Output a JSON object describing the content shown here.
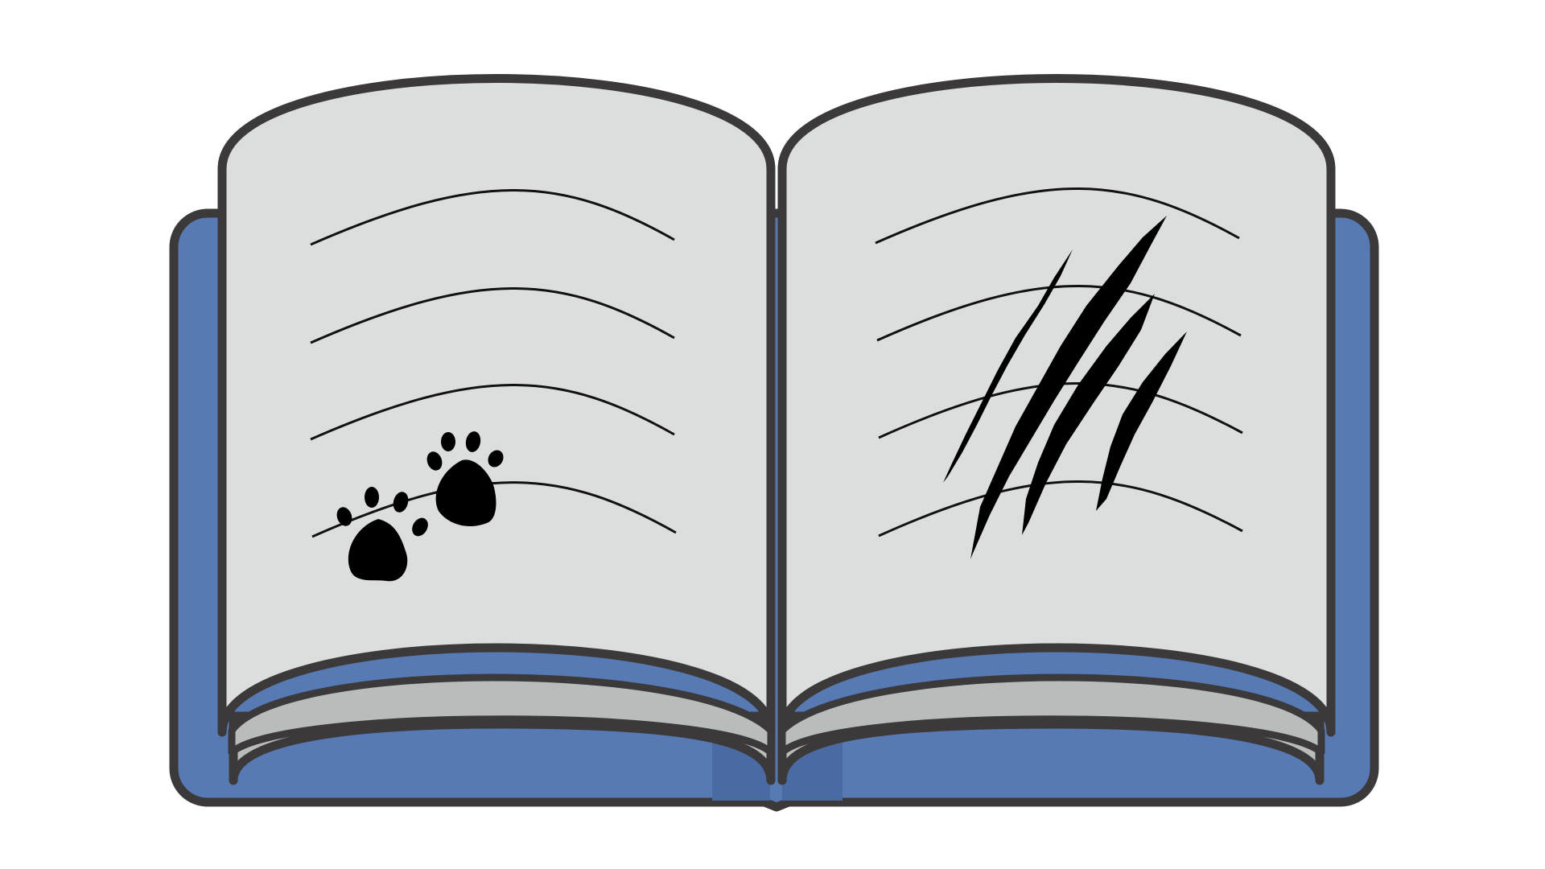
{
  "image": {
    "subject": "open-book-illustration",
    "colors": {
      "background": "#ffffff",
      "cover": "#5779b4",
      "cover_shadow": "#4a6aa3",
      "outline": "#3b3939",
      "page": "#dcdedd",
      "page_edge": "#b8bdbb",
      "ink": "#111111"
    },
    "left_page": {
      "line_count": 4,
      "marks": "paw-prints",
      "paw_print_count": 2
    },
    "right_page": {
      "line_count": 4,
      "marks": "claw-scratches",
      "scratch_count": 4
    }
  }
}
